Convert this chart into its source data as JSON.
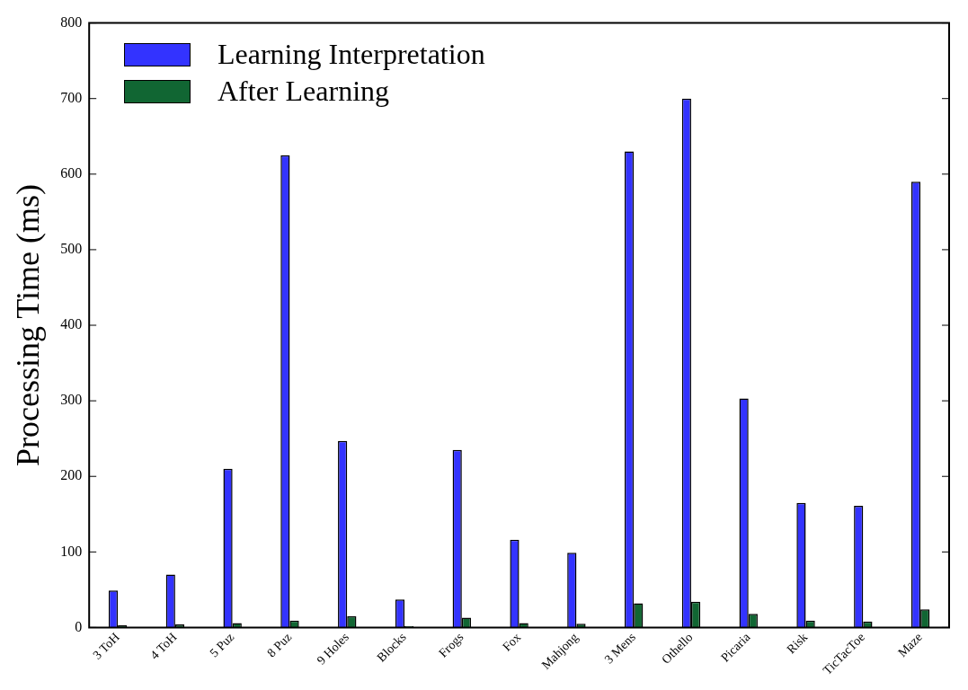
{
  "chart_data": {
    "type": "bar",
    "ylabel": "Processing Time (ms)",
    "categories": [
      "3 ToH",
      "4 ToH",
      "5 Puz",
      "8 Puz",
      "9 Holes",
      "Blocks",
      "Frogs",
      "Fox",
      "Mahjong",
      "3 Mens",
      "Othello",
      "Picaria",
      "Risk",
      "TicTacToe",
      "Maze"
    ],
    "series": [
      {
        "name": "Learning Interpretation",
        "color": "#3333ff",
        "values": [
          49,
          70,
          210,
          625,
          247,
          37,
          235,
          116,
          99,
          630,
          700,
          303,
          165,
          161,
          590
        ]
      },
      {
        "name": "After Learning",
        "color": "#116633",
        "values": [
          3,
          4,
          6,
          9,
          15,
          2,
          13,
          6,
          5,
          32,
          34,
          18,
          9,
          8,
          24
        ]
      }
    ],
    "ylim": [
      0,
      800
    ],
    "yticks": [
      0,
      100,
      200,
      300,
      400,
      500,
      600,
      700,
      800
    ],
    "grid": false,
    "legend": "top left"
  }
}
